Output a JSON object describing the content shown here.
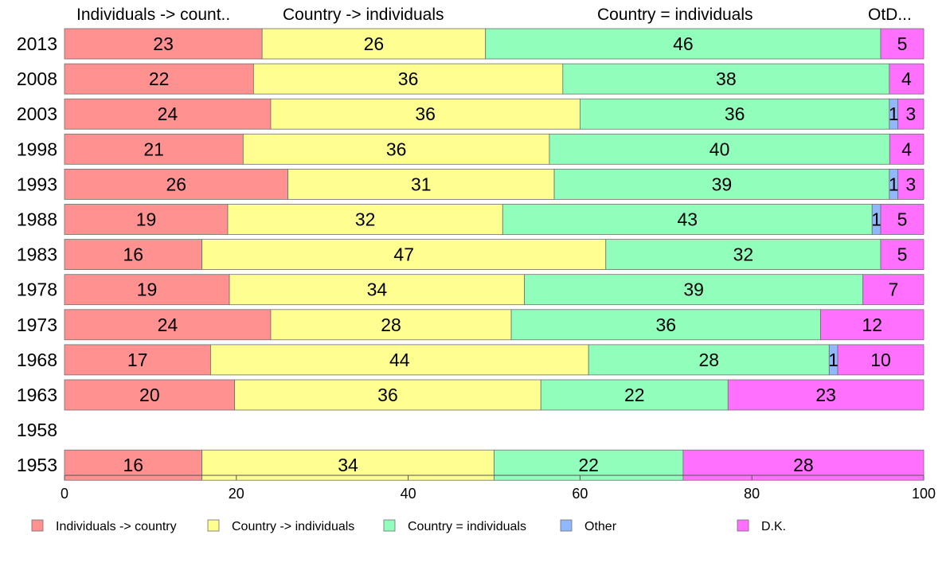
{
  "chart_data": {
    "type": "bar",
    "orientation": "horizontal",
    "stacked": true,
    "column_headers": [
      "Individuals -> count..",
      "Country -> individuals",
      "Country = individuals",
      "OtD..."
    ],
    "categories": [
      "2013",
      "2008",
      "2003",
      "1998",
      "1993",
      "1988",
      "1983",
      "1978",
      "1973",
      "1968",
      "1963",
      "1958",
      "1953"
    ],
    "series": [
      {
        "name": "Individuals -> country",
        "color": "#ff9191",
        "values": [
          23,
          22,
          24,
          21,
          26,
          19,
          16,
          19,
          24,
          17,
          20,
          null,
          16
        ]
      },
      {
        "name": "Country -> individuals",
        "color": "#ffff91",
        "values": [
          26,
          36,
          36,
          36,
          31,
          32,
          47,
          34,
          28,
          44,
          36,
          null,
          34
        ]
      },
      {
        "name": "Country = individuals",
        "color": "#91ffbb",
        "values": [
          46,
          38,
          36,
          40,
          39,
          43,
          32,
          39,
          36,
          28,
          22,
          null,
          22
        ]
      },
      {
        "name": "Other",
        "color": "#91b7ff",
        "values": [
          0,
          0,
          1,
          0,
          1,
          1,
          0,
          0,
          0,
          1,
          0,
          null,
          0
        ]
      },
      {
        "name": "D.K.",
        "color": "#ff70ff",
        "values": [
          5,
          4,
          3,
          4,
          3,
          5,
          5,
          7,
          12,
          10,
          23,
          null,
          28
        ]
      }
    ],
    "xlim": [
      0,
      100
    ],
    "xticks": [
      0,
      20,
      40,
      60,
      80,
      100
    ],
    "legend_position": "bottom",
    "grid": false
  }
}
